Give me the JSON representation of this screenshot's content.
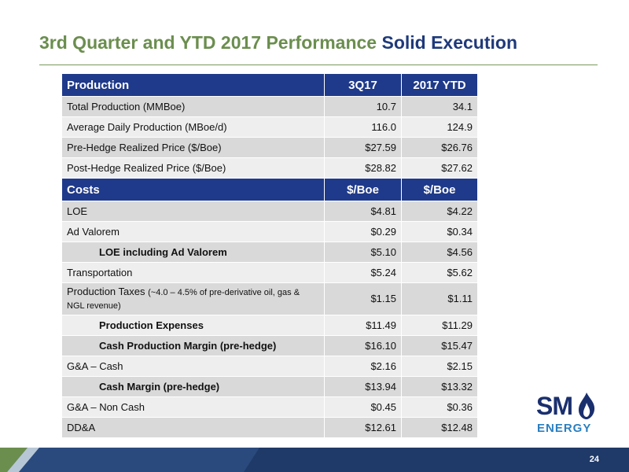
{
  "title": {
    "part1": "3rd Quarter and YTD 2017 Performance",
    "part2": "Solid Execution"
  },
  "table": {
    "production_header": {
      "label": "Production",
      "col1": "3Q17",
      "col2": "2017 YTD"
    },
    "production_rows": [
      {
        "label": "Total Production (MMBoe)",
        "v1": "10.7",
        "v2": "34.1"
      },
      {
        "label": "Average Daily Production (MBoe/d)",
        "v1": "116.0",
        "v2": "124.9"
      },
      {
        "label": "Pre-Hedge Realized Price ($/Boe)",
        "v1": "$27.59",
        "v2": "$26.76"
      },
      {
        "label": "Post-Hedge Realized Price ($/Boe)",
        "v1": "$28.82",
        "v2": "$27.62"
      }
    ],
    "costs_header": {
      "label": "Costs",
      "col1": "$/Boe",
      "col2": "$/Boe"
    },
    "cost_rows": [
      {
        "label": "LOE",
        "v1": "$4.81",
        "v2": "$4.22"
      },
      {
        "label": "Ad Valorem",
        "v1": "$0.29",
        "v2": "$0.34"
      },
      {
        "label": "LOE including Ad Valorem",
        "v1": "$5.10",
        "v2": "$4.56"
      },
      {
        "label": "Transportation",
        "v1": "$5.24",
        "v2": "$5.62"
      },
      {
        "label": "Production Taxes",
        "note": "(~4.0 – 4.5% of pre-derivative oil, gas & NGL revenue)",
        "v1": "$1.15",
        "v2": "$1.11"
      },
      {
        "label": "Production Expenses",
        "v1": "$11.49",
        "v2": "$11.29"
      },
      {
        "label": "Cash Production Margin (pre-hedge)",
        "v1": "$16.10",
        "v2": "$15.47"
      },
      {
        "label": "G&A – Cash",
        "v1": "$2.16",
        "v2": "$2.15"
      },
      {
        "label": "Cash Margin (pre-hedge)",
        "v1": "$13.94",
        "v2": "$13.32"
      },
      {
        "label": "G&A – Non Cash",
        "v1": "$0.45",
        "v2": "$0.36"
      },
      {
        "label": "DD&A",
        "v1": "$12.61",
        "v2": "$12.48"
      }
    ]
  },
  "logo": {
    "sm": "SM",
    "energy": "ENERGY"
  },
  "page_number": "24",
  "colors": {
    "title_green": "#6b8e4e",
    "title_blue": "#1f3a7a",
    "header_blue": "#1f3a8a",
    "row_dark": "#d9d9d9",
    "row_light": "#eeeeee",
    "footer_navy": "#1f3a68",
    "footer_green": "#6b8e4e"
  }
}
